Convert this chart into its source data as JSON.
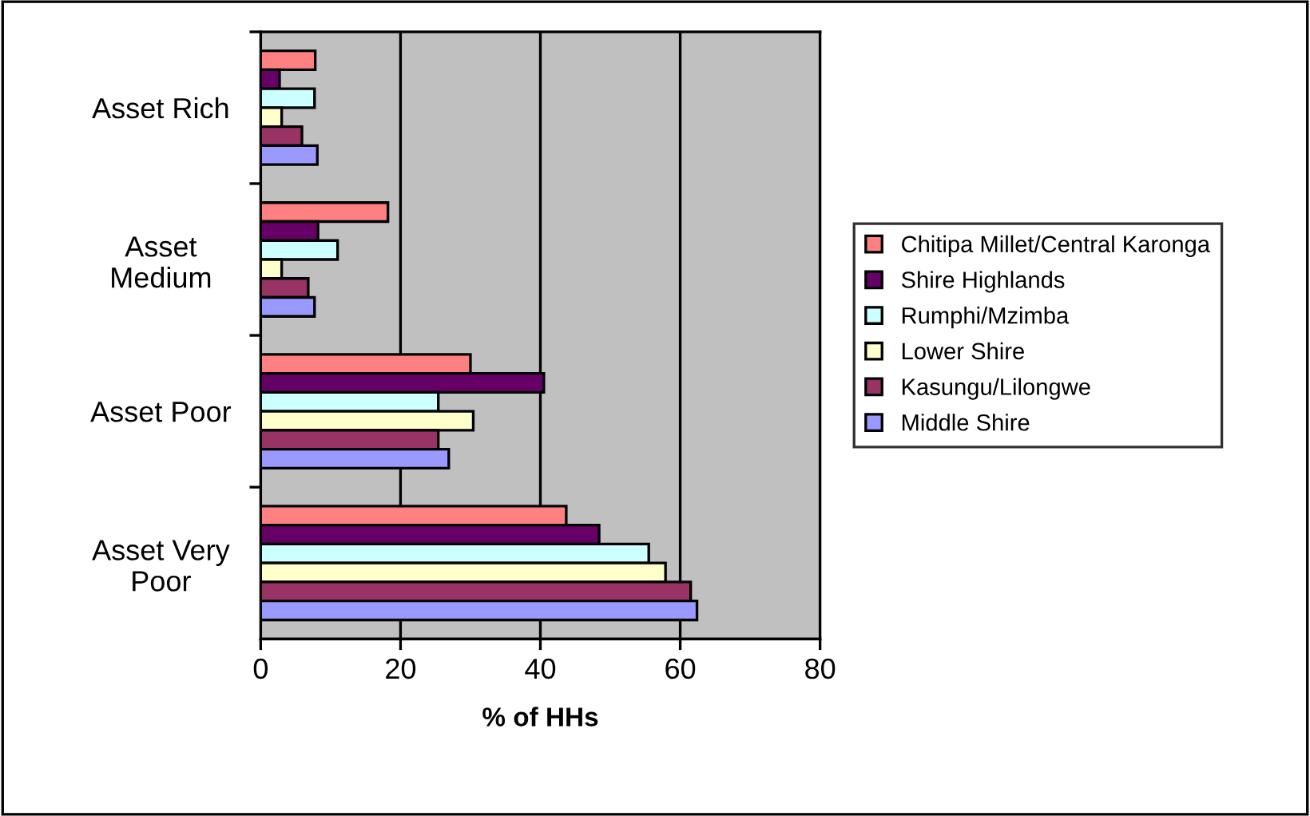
{
  "chart_data": {
    "type": "bar",
    "orientation": "horizontal",
    "xlabel": "% of HHs",
    "categories": [
      "Asset Rich",
      "Asset\nMedium",
      "Asset Poor",
      "Asset Very\nPoor"
    ],
    "series": [
      {
        "name": "Chitipa Millet/Central Karonga",
        "color": "#ff8080",
        "values": [
          7.8,
          18.2,
          30.0,
          43.7
        ]
      },
      {
        "name": "Shire Highlands",
        "color": "#660066",
        "values": [
          2.7,
          8.2,
          40.5,
          48.4
        ]
      },
      {
        "name": "Rumphi/Mzimba",
        "color": "#ccffff",
        "values": [
          7.7,
          11.0,
          25.4,
          55.5
        ]
      },
      {
        "name": "Lower Shire",
        "color": "#ffffcc",
        "values": [
          3.0,
          3.0,
          30.4,
          57.9
        ]
      },
      {
        "name": "Kasungu/Lilongwe",
        "color": "#993366",
        "values": [
          5.9,
          6.8,
          25.4,
          61.5
        ]
      },
      {
        "name": "Middle Shire",
        "color": "#9999ff",
        "values": [
          8.1,
          7.7,
          26.9,
          62.4
        ]
      }
    ],
    "xlim": [
      0,
      80
    ],
    "xticks": [
      0,
      20,
      40,
      60,
      80
    ],
    "grid": "x",
    "legend": "right"
  }
}
